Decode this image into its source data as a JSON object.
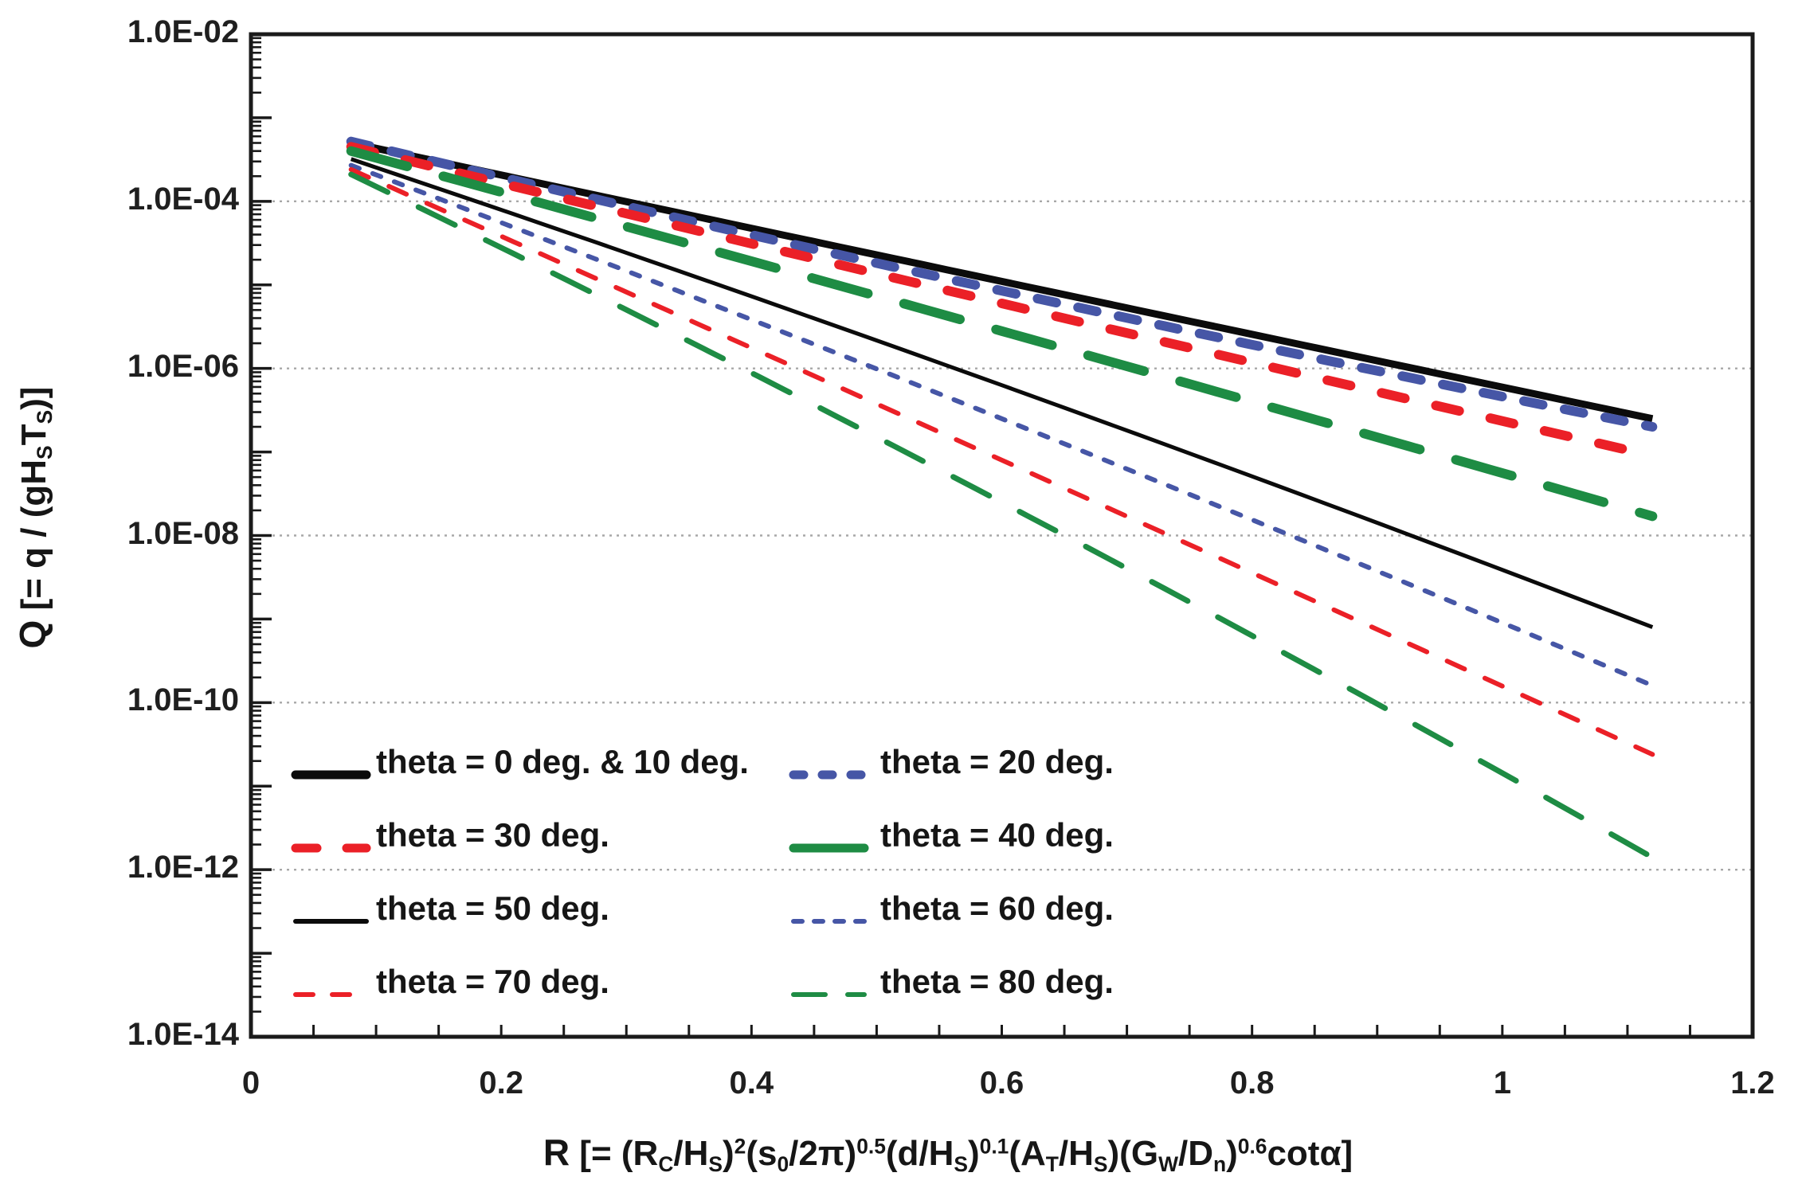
{
  "chart_data": {
    "type": "line",
    "x_axis": {
      "label_runs": [
        {
          "t": "R",
          "b": true
        },
        {
          "t": " [= (R"
        },
        {
          "t": "C",
          "sub": true
        },
        {
          "t": "/H"
        },
        {
          "t": "S",
          "sub": true
        },
        {
          "t": ")"
        },
        {
          "t": "2",
          "sup": true
        },
        {
          "t": "(s"
        },
        {
          "t": "0",
          "sub": true
        },
        {
          "t": "/2π)"
        },
        {
          "t": "0.5",
          "sup": true
        },
        {
          "t": "(d/H"
        },
        {
          "t": "S",
          "sub": true
        },
        {
          "t": ")"
        },
        {
          "t": "0.1",
          "sup": true
        },
        {
          "t": "(A"
        },
        {
          "t": "T",
          "sub": true
        },
        {
          "t": "/H"
        },
        {
          "t": "S",
          "sub": true
        },
        {
          "t": ")(G"
        },
        {
          "t": "W",
          "sub": true
        },
        {
          "t": "/D"
        },
        {
          "t": "n",
          "sub": true
        },
        {
          "t": ")"
        },
        {
          "t": "0.6",
          "sup": true
        },
        {
          "t": "cotα]"
        }
      ],
      "min": 0,
      "max": 1.2,
      "major_ticks": [
        0,
        0.2,
        0.4,
        0.6,
        0.8,
        1,
        1.2
      ],
      "major_tick_labels": [
        "0",
        "0.2",
        "0.4",
        "0.6",
        "0.8",
        "1",
        "1.2"
      ],
      "minor_tick_step": 0.05,
      "scale": "linear"
    },
    "y_axis": {
      "label_runs": [
        {
          "t": "Q",
          "b": true
        },
        {
          "t": " [= q / (gH"
        },
        {
          "t": "S",
          "sub": true
        },
        {
          "t": "T"
        },
        {
          "t": "S",
          "sub": true
        },
        {
          "t": ")]"
        }
      ],
      "min": 1e-14,
      "max": 0.01,
      "tick_labels": [
        "1.0E-02",
        "1.0E-04",
        "1.0E-06",
        "1.0E-08",
        "1.0E-10",
        "1.0E-12",
        "1.0E-14"
      ],
      "tick_exponents": [
        -2,
        -4,
        -6,
        -8,
        -10,
        -12,
        -14
      ],
      "gridline_exponents": [
        -4,
        -6,
        -8,
        -10,
        -12
      ],
      "scale": "log"
    },
    "grid": {
      "horizontal_dotted": true,
      "vertical": false,
      "color": "#a8a8a8"
    },
    "series": [
      {
        "name": "theta = 0 deg. & 10 deg.",
        "color": "#0b0b0b",
        "width": 9,
        "dash": "",
        "points": [
          [
            0.08,
            0.0005
          ],
          [
            0.6,
            1.1e-05
          ],
          [
            1.12,
            2.5e-07
          ]
        ]
      },
      {
        "name": "theta = 20 deg.",
        "color": "#4656a6",
        "width": 12,
        "dash": "24 28",
        "points": [
          [
            0.08,
            0.00052
          ],
          [
            0.6,
            8.5e-06
          ],
          [
            1.12,
            2e-07
          ]
        ]
      },
      {
        "name": "theta = 30 deg.",
        "color": "#eb2027",
        "width": 12,
        "dash": "30 40",
        "points": [
          [
            0.08,
            0.00045
          ],
          [
            0.6,
            6e-06
          ],
          [
            1.12,
            9e-08
          ]
        ]
      },
      {
        "name": "theta = 40 deg.",
        "color": "#1e8c44",
        "width": 12,
        "dash": "73 47",
        "points": [
          [
            0.08,
            0.0004
          ],
          [
            0.6,
            2.8e-06
          ],
          [
            1.12,
            1.7e-08
          ]
        ]
      },
      {
        "name": "theta = 50 deg.",
        "color": "#0b0b0b",
        "width": 5,
        "dash": "",
        "points": [
          [
            0.08,
            0.00032
          ],
          [
            0.6,
            6.3e-07
          ],
          [
            1.12,
            8e-10
          ]
        ]
      },
      {
        "name": "theta = 60 deg.",
        "color": "#4656a6",
        "width": 6,
        "dash": "11 18",
        "points": [
          [
            0.08,
            0.00027
          ],
          [
            0.6,
            2.5e-07
          ],
          [
            1.12,
            1.6e-10
          ]
        ]
      },
      {
        "name": "theta = 70 deg.",
        "color": "#eb2027",
        "width": 6,
        "dash": "24 28",
        "points": [
          [
            0.08,
            0.00024
          ],
          [
            0.6,
            8e-08
          ],
          [
            1.12,
            2.4e-11
          ]
        ]
      },
      {
        "name": "theta = 80 deg.",
        "color": "#1e8c44",
        "width": 7,
        "dash": "51 43",
        "points": [
          [
            0.08,
            0.00021
          ],
          [
            0.6,
            2.5e-08
          ],
          [
            1.12,
            1.4e-12
          ]
        ]
      }
    ],
    "legend": {
      "position": "inside bottom-left",
      "items": [
        {
          "label": "theta = 0 deg. & 10 deg.",
          "color": "#0b0b0b",
          "width": 11,
          "dash": ""
        },
        {
          "label": "theta = 20 deg.",
          "color": "#4656a6",
          "width": 11,
          "dash": "13 23"
        },
        {
          "label": "theta = 30 deg.",
          "color": "#eb2027",
          "width": 11,
          "dash": "27 37"
        },
        {
          "label": "theta = 40 deg.",
          "color": "#1e8c44",
          "width": 11,
          "dash": ""
        },
        {
          "label": "theta = 50 deg.",
          "color": "#0b0b0b",
          "width": 6,
          "dash": ""
        },
        {
          "label": "theta = 60 deg.",
          "color": "#4656a6",
          "width": 6,
          "dash": "11 15"
        },
        {
          "label": "theta = 70 deg.",
          "color": "#eb2027",
          "width": 6,
          "dash": "22 24"
        },
        {
          "label": "theta = 80 deg.",
          "color": "#1e8c44",
          "width": 6,
          "dash": "40 28"
        }
      ]
    }
  },
  "colors": {
    "spine": "#1a1a1a",
    "grid": "#a8a8a8",
    "background": "#ffffff",
    "text": "#1a1a1a"
  }
}
